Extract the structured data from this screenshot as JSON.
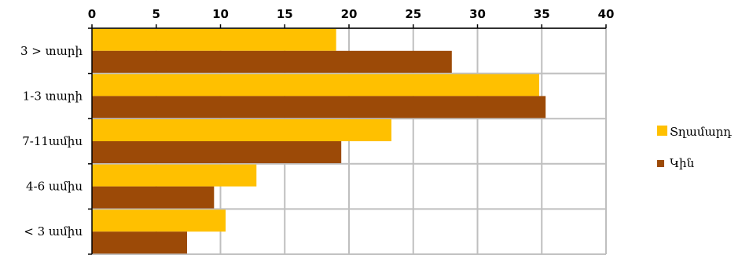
{
  "chart_data": {
    "type": "bar",
    "orientation": "horizontal",
    "x_axis_position": "top",
    "categories": [
      "3 > տարի",
      "1-3 տարի",
      "7-11ամիս",
      "4-6 ամիս",
      "< 3 ամիս"
    ],
    "series": [
      {
        "name": "Տղամարդ",
        "color": "#FFC000",
        "values": [
          19,
          34.8,
          23.3,
          12.8,
          10.4
        ]
      },
      {
        "name": "Կին",
        "color": "#9C4A07",
        "values": [
          28,
          35.3,
          19.4,
          9.5,
          7.4
        ]
      }
    ],
    "xlim": [
      0,
      40
    ],
    "xticks": [
      0,
      5,
      10,
      15,
      20,
      25,
      30,
      35,
      40
    ],
    "grid": true,
    "grid_color": "#BFBFBF",
    "legend_placement": "right",
    "title": "",
    "xlabel": "",
    "ylabel": ""
  }
}
